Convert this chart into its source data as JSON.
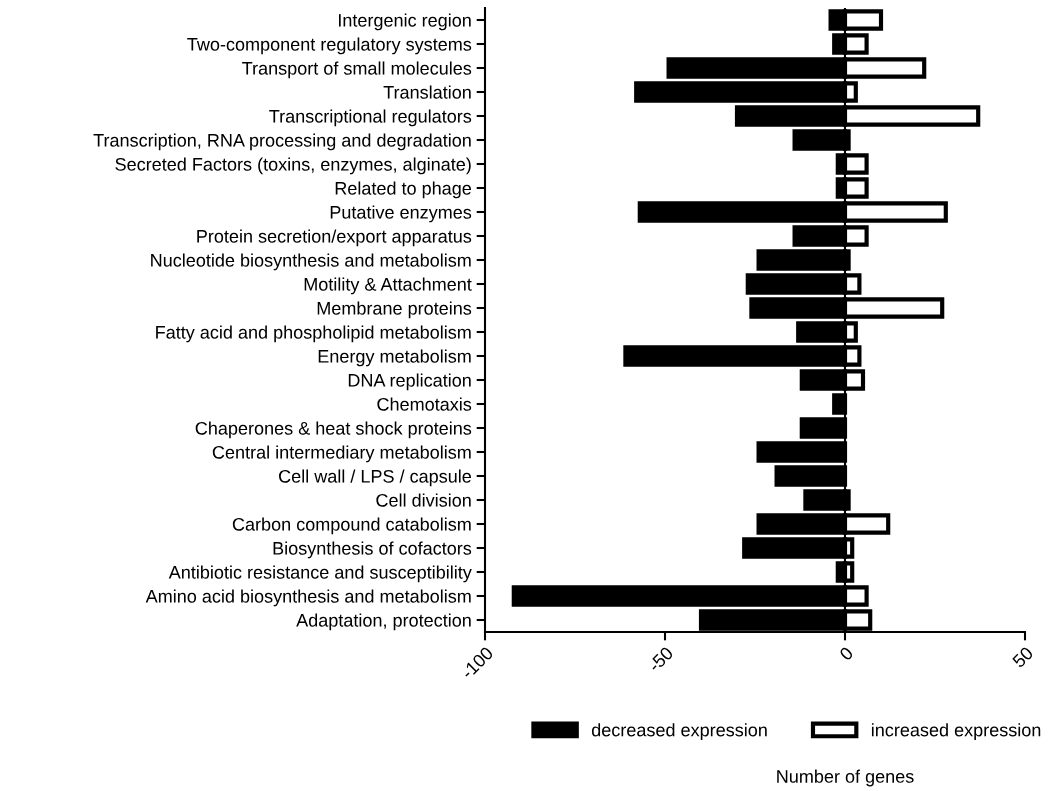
{
  "chart_data": {
    "type": "bar",
    "orientation": "horizontal",
    "stacked": true,
    "annotations": [
      "Number of genes"
    ],
    "categories": [
      "Intergenic region",
      "Two-component regulatory systems",
      "Transport of small molecules",
      "Translation",
      "Transcriptional regulators",
      "Transcription, RNA processing and degradation",
      "Secreted Factors (toxins, enzymes, alginate)",
      "Related to phage",
      "Putative enzymes",
      "Protein secretion/export apparatus",
      "Nucleotide biosynthesis and metabolism",
      "Motility & Attachment",
      "Membrane proteins",
      "Fatty acid and phospholipid metabolism",
      "Energy metabolism",
      "DNA replication",
      "Chemotaxis",
      "Chaperones & heat shock proteins",
      "Central intermediary metabolism",
      "Cell wall / LPS / capsule",
      "Cell division",
      "Carbon compound catabolism",
      "Biosynthesis of cofactors",
      "Antibiotic resistance and susceptibility",
      "Amino acid biosynthesis and metabolism",
      "Adaptation, protection"
    ],
    "series": [
      {
        "name": "decreased expression",
        "color": "#000000",
        "values": [
          -4,
          -3,
          -49,
          -58,
          -30,
          -14,
          -2,
          -2,
          -57,
          -14,
          -24,
          -27,
          -26,
          -13,
          -61,
          -12,
          -3,
          -12,
          -24,
          -19,
          -11,
          -24,
          -28,
          -2,
          -92,
          -40
        ]
      },
      {
        "name": "increased expression",
        "color": "#ffffff",
        "values": [
          10,
          6,
          22,
          3,
          37,
          1,
          6,
          6,
          28,
          6,
          1,
          4,
          27,
          3,
          4,
          5,
          0,
          0,
          0,
          0,
          1,
          12,
          2,
          2,
          6,
          7
        ]
      }
    ],
    "xlim": [
      -100,
      50
    ],
    "xticks": [
      -100,
      -50,
      0,
      50
    ],
    "ref_lines": [
      {
        "axis": "x",
        "value": 0,
        "color": "#000000"
      }
    ],
    "legend": "bottom",
    "grid": false
  }
}
